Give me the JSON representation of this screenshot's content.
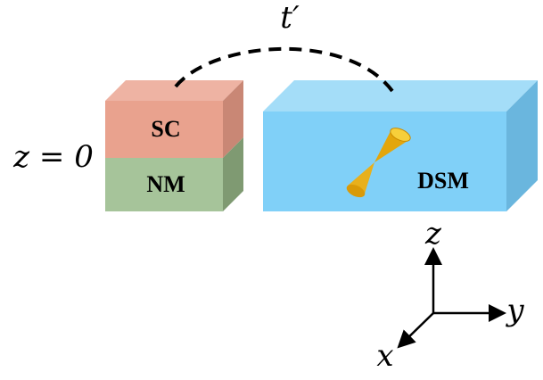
{
  "labels": {
    "hopping": "t′",
    "sc": "SC",
    "nm": "NM",
    "interface": "z = 0",
    "dsm": "DSM"
  },
  "axes": {
    "z": "z",
    "y": "y",
    "x": "x"
  }
}
